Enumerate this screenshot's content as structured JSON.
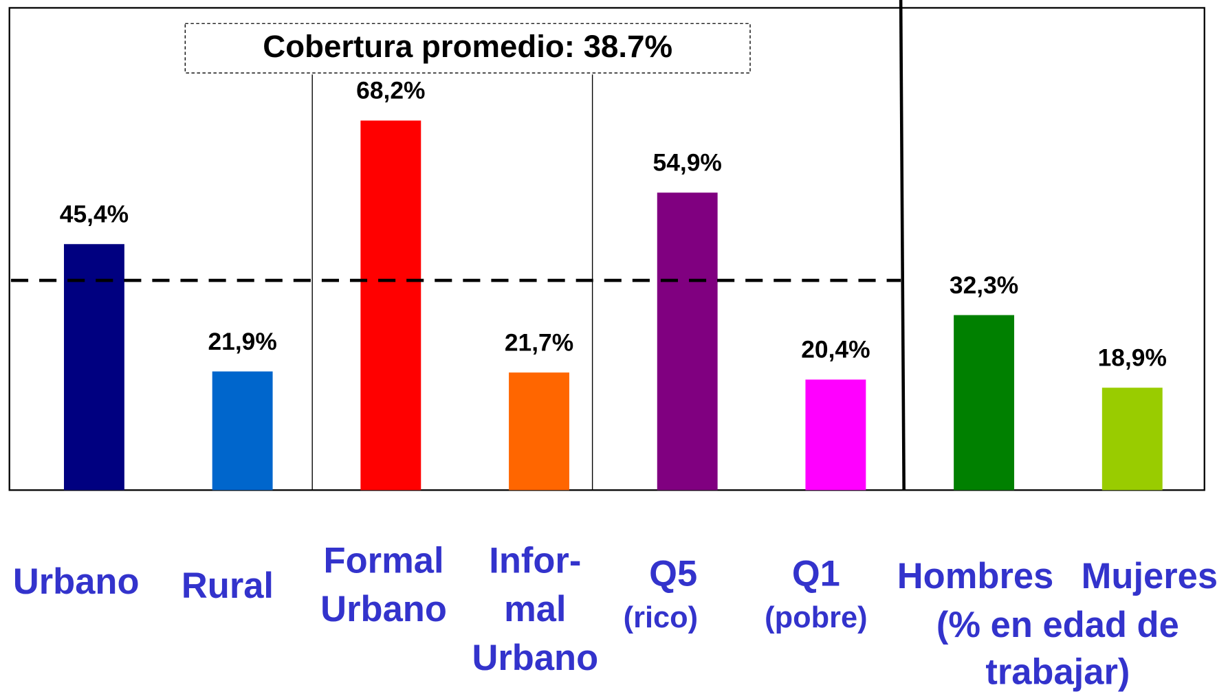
{
  "chart_data": {
    "type": "bar",
    "categories": [
      [
        "Urbano"
      ],
      [
        "Rural"
      ],
      [
        "Formal",
        "Urbano"
      ],
      [
        "Infor-",
        "mal",
        "Urbano"
      ],
      [
        "Q5",
        "(rico)"
      ],
      [
        "Q1",
        "(pobre)"
      ],
      [
        "Hombres"
      ],
      [
        "Mujeres"
      ]
    ],
    "values": [
      45.4,
      21.9,
      68.2,
      21.7,
      54.9,
      20.4,
      32.3,
      18.9
    ],
    "value_labels": [
      "45,4%",
      "21,9%",
      "68,2%",
      "21,7%",
      "54,9%",
      "20,4%",
      "32,3%",
      "18,9%"
    ],
    "colors": [
      "#000080",
      "#0066cc",
      "#ff0000",
      "#ff6600",
      "#800080",
      "#ff00ff",
      "#008000",
      "#99cc00"
    ],
    "ylim": [
      0,
      89
    ],
    "average_line": {
      "value": 38.7,
      "label": "Cobertura promedio: 38.7%"
    },
    "group_note": [
      "(% en edad de",
      "trabajar)"
    ]
  }
}
